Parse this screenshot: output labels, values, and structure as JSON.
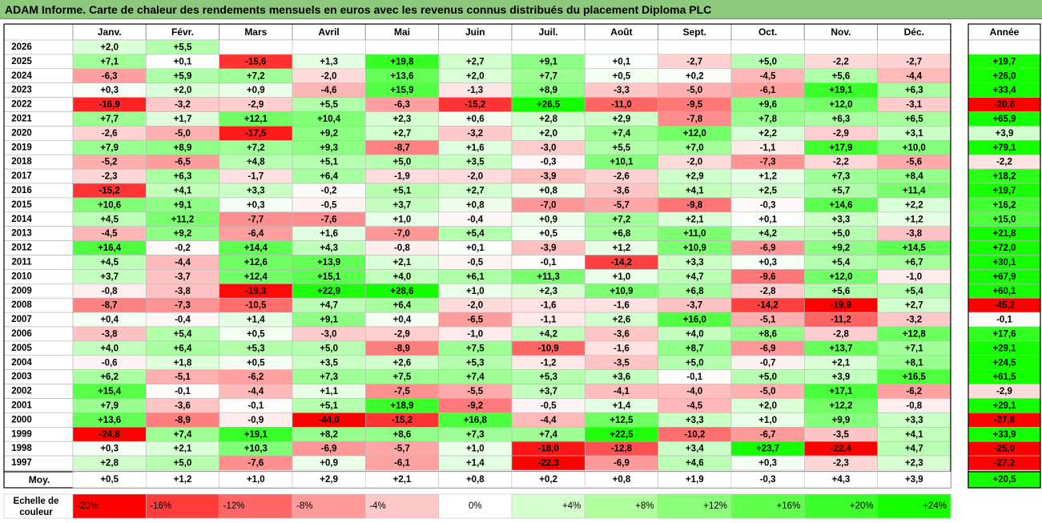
{
  "title": "ADAM Informe. Carte de chaleur des rendements mensuels en euros avec les revenus connus distribués du placement Diploma PLC",
  "chart_data": {
    "type": "heatmap",
    "months": [
      "Janv.",
      "Févr.",
      "Mars",
      "Avril",
      "Mai",
      "Juin",
      "Juil.",
      "Août",
      "Sept.",
      "Oct.",
      "Nov.",
      "Déc."
    ],
    "year_header": "Année",
    "rows": [
      {
        "year": "2026",
        "values": [
          "+2,0",
          "+5,5",
          "",
          "",
          "",
          "",
          "",
          "",
          "",
          "",
          "",
          ""
        ],
        "annual": ""
      },
      {
        "year": "2025",
        "values": [
          "+7,1",
          "+0,1",
          "-15,6",
          "+1,3",
          "+19,8",
          "+2,7",
          "+9,1",
          "+0,1",
          "-2,7",
          "+5,0",
          "-2,2",
          "-2,7"
        ],
        "annual": "+19,7"
      },
      {
        "year": "2024",
        "values": [
          "-6,3",
          "+5,9",
          "+7,2",
          "-2,0",
          "+13,6",
          "+2,0",
          "+7,7",
          "+0,5",
          "+0,2",
          "-4,5",
          "+5,6",
          "-4,4"
        ],
        "annual": "+26,0"
      },
      {
        "year": "2023",
        "values": [
          "+0,3",
          "+2,0",
          "+0,9",
          "-4,6",
          "+15,9",
          "-1,3",
          "+8,9",
          "-3,3",
          "-5,0",
          "-6,1",
          "+19,1",
          "+6,3"
        ],
        "annual": "+33,4"
      },
      {
        "year": "2022",
        "values": [
          "-16,9",
          "-3,2",
          "-2,9",
          "+5,5",
          "-6,3",
          "-15,2",
          "+26,5",
          "-11,0",
          "-9,5",
          "+9,6",
          "+12,0",
          "-3,1"
        ],
        "annual": "-20,6"
      },
      {
        "year": "2021",
        "values": [
          "+7,7",
          "+1,7",
          "+12,1",
          "+10,4",
          "+2,3",
          "+0,6",
          "+2,8",
          "+2,9",
          "-7,8",
          "+7,8",
          "+6,3",
          "+6,5"
        ],
        "annual": "+65,9"
      },
      {
        "year": "2020",
        "values": [
          "-2,6",
          "-5,0",
          "-17,5",
          "+9,2",
          "+2,7",
          "-3,2",
          "+2,0",
          "+7,4",
          "+12,0",
          "+2,2",
          "-2,9",
          "+3,1"
        ],
        "annual": "+3,9"
      },
      {
        "year": "2019",
        "values": [
          "+7,9",
          "+8,9",
          "+7,2",
          "+9,3",
          "-8,7",
          "+1,6",
          "-3,0",
          "+5,5",
          "+7,0",
          "-1,1",
          "+17,9",
          "+10,0"
        ],
        "annual": "+79,1"
      },
      {
        "year": "2018",
        "values": [
          "-5,2",
          "-6,5",
          "+4,8",
          "+5,1",
          "+5,0",
          "+3,5",
          "-0,3",
          "+10,1",
          "-2,0",
          "-7,3",
          "-2,2",
          "-5,6"
        ],
        "annual": "-2,2"
      },
      {
        "year": "2017",
        "values": [
          "-2,3",
          "+6,3",
          "-1,7",
          "+6,4",
          "-1,9",
          "-2,0",
          "-3,9",
          "-2,6",
          "+2,9",
          "+1,2",
          "+7,3",
          "+8,4"
        ],
        "annual": "+18,2"
      },
      {
        "year": "2016",
        "values": [
          "-15,2",
          "+4,1",
          "+3,3",
          "-0,2",
          "+5,1",
          "+2,7",
          "+0,8",
          "-3,6",
          "+4,1",
          "+2,5",
          "+5,7",
          "+11,4"
        ],
        "annual": "+19,7"
      },
      {
        "year": "2015",
        "values": [
          "+10,6",
          "+9,1",
          "+0,3",
          "-0,5",
          "+3,7",
          "+0,8",
          "-7,0",
          "-5,7",
          "-9,8",
          "-0,3",
          "+14,6",
          "+2,2"
        ],
        "annual": "+16,2"
      },
      {
        "year": "2014",
        "values": [
          "+4,5",
          "+11,2",
          "-7,7",
          "-7,6",
          "+1,0",
          "-0,4",
          "+0,9",
          "+7,2",
          "+2,1",
          "+0,1",
          "+3,3",
          "+1,2"
        ],
        "annual": "+15,0"
      },
      {
        "year": "2013",
        "values": [
          "-4,5",
          "+9,2",
          "-6,4",
          "+1,6",
          "-7,0",
          "+5,4",
          "+0,5",
          "+6,8",
          "+11,0",
          "+4,2",
          "+5,0",
          "-3,8"
        ],
        "annual": "+21,8"
      },
      {
        "year": "2012",
        "values": [
          "+16,4",
          "-0,2",
          "+14,4",
          "+4,3",
          "-0,8",
          "+0,1",
          "-3,9",
          "+1,2",
          "+10,9",
          "-6,9",
          "+9,2",
          "+14,5"
        ],
        "annual": "+72,0"
      },
      {
        "year": "2011",
        "values": [
          "+4,5",
          "-4,4",
          "+12,6",
          "+13,9",
          "+2,1",
          "-0,5",
          "-0,1",
          "-14,2",
          "+3,3",
          "+0,3",
          "+5,4",
          "+6,7"
        ],
        "annual": "+30,1"
      },
      {
        "year": "2010",
        "values": [
          "+3,7",
          "-3,7",
          "+12,4",
          "+15,1",
          "+4,0",
          "+6,1",
          "+11,3",
          "+1,0",
          "+4,7",
          "-9,6",
          "+12,0",
          "-1,0"
        ],
        "annual": "+67,9"
      },
      {
        "year": "2009",
        "values": [
          "-0,8",
          "-3,8",
          "-19,3",
          "+22,9",
          "+28,6",
          "+1,0",
          "+2,3",
          "+10,9",
          "+6,8",
          "-2,8",
          "+5,6",
          "+5,4"
        ],
        "annual": "+60,1"
      },
      {
        "year": "2008",
        "values": [
          "-8,7",
          "-7,3",
          "-10,5",
          "+4,7",
          "+6,4",
          "-2,0",
          "-1,6",
          "-1,6",
          "-3,7",
          "-14,2",
          "-19,9",
          "+2,7"
        ],
        "annual": "-45,2"
      },
      {
        "year": "2007",
        "values": [
          "+0,4",
          "-0,4",
          "+1,4",
          "+9,1",
          "+0,4",
          "-6,5",
          "-1,1",
          "+2,6",
          "+16,0",
          "-5,1",
          "-11,2",
          "-3,2"
        ],
        "annual": "-0,1"
      },
      {
        "year": "2006",
        "values": [
          "-3,8",
          "+5,4",
          "+0,5",
          "-3,0",
          "-2,9",
          "-1,0",
          "+4,2",
          "-3,6",
          "+4,0",
          "+8,6",
          "-2,8",
          "+12,8"
        ],
        "annual": "+17,6"
      },
      {
        "year": "2005",
        "values": [
          "+4,0",
          "+6,4",
          "+5,3",
          "+5,0",
          "-8,9",
          "+7,5",
          "-10,9",
          "-1,6",
          "+8,7",
          "-6,9",
          "+13,7",
          "+7,1"
        ],
        "annual": "+29,1"
      },
      {
        "year": "2004",
        "values": [
          "-0,6",
          "+1,8",
          "+0,5",
          "+3,5",
          "+2,6",
          "+5,3",
          "-1,2",
          "-3,5",
          "+5,0",
          "-0,7",
          "+2,1",
          "+8,1"
        ],
        "annual": "+24,5"
      },
      {
        "year": "2003",
        "values": [
          "+6,2",
          "-5,1",
          "-6,2",
          "+7,3",
          "+7,5",
          "+7,4",
          "+5,3",
          "+3,6",
          "-0,1",
          "+5,0",
          "+3,9",
          "+16,5"
        ],
        "annual": "+61,5"
      },
      {
        "year": "2002",
        "values": [
          "+15,4",
          "-0,1",
          "-4,4",
          "+1,1",
          "-7,5",
          "-5,5",
          "+3,7",
          "-4,1",
          "-4,0",
          "-5,0",
          "+17,1",
          "-6,2"
        ],
        "annual": "-2,9"
      },
      {
        "year": "2001",
        "values": [
          "+7,9",
          "-3,6",
          "-0,1",
          "+5,1",
          "+18,9",
          "-9,2",
          "-0,5",
          "+1,4",
          "-4,5",
          "+2,0",
          "+12,2",
          "-0,8"
        ],
        "annual": "+29,1"
      },
      {
        "year": "2000",
        "values": [
          "+13,6",
          "-8,9",
          "-0,9",
          "-44,0",
          "-15,2",
          "+16,8",
          "-4,4",
          "+12,5",
          "+3,3",
          "+1,0",
          "+9,9",
          "+3,3"
        ],
        "annual": "-27,8"
      },
      {
        "year": "1999",
        "values": [
          "-24,8",
          "+7,4",
          "+19,1",
          "+8,2",
          "+8,6",
          "+7,3",
          "+7,4",
          "+22,5",
          "-10,2",
          "-6,7",
          "-3,5",
          "+4,1"
        ],
        "annual": "+33,9"
      },
      {
        "year": "1998",
        "values": [
          "+0,3",
          "+2,1",
          "+10,3",
          "-6,9",
          "-5,7",
          "+1,0",
          "-18,0",
          "-12,8",
          "+3,4",
          "+23,7",
          "-22,4",
          "+4,7"
        ],
        "annual": "-25,0"
      },
      {
        "year": "1997",
        "values": [
          "+2,8",
          "+5,0",
          "-7,6",
          "+0,9",
          "-6,1",
          "+1,4",
          "-22,3",
          "-6,9",
          "+4,6",
          "+0,3",
          "-2,3",
          "+2,3"
        ],
        "annual": "-27,2"
      }
    ],
    "average": {
      "label": "Moy.",
      "values": [
        "+0,5",
        "+1,2",
        "+1,0",
        "+2,9",
        "+2,1",
        "+0,8",
        "+0,2",
        "+0,8",
        "+1,9",
        "-0,3",
        "+4,3",
        "+3,9"
      ],
      "annual": "+20,5"
    },
    "scale": {
      "label_lines": [
        "Echelle de",
        "couleur"
      ],
      "steps": [
        {
          "label": "-20%",
          "color": "#ff0000"
        },
        {
          "label": "-16%",
          "color": "#ff3c3c"
        },
        {
          "label": "-12%",
          "color": "#ff6666"
        },
        {
          "label": "-8%",
          "color": "#ff9a9a"
        },
        {
          "label": "-4%",
          "color": "#ffc8c8"
        },
        {
          "label": "0%",
          "color": "#ffffff"
        },
        {
          "label": "+4%",
          "color": "#d6ffd0"
        },
        {
          "label": "+8%",
          "color": "#b2ff9f"
        },
        {
          "label": "+12%",
          "color": "#8cff7a"
        },
        {
          "label": "+16%",
          "color": "#5fff4c"
        },
        {
          "label": "+20%",
          "color": "#3cff2a"
        },
        {
          "label": "+24%",
          "color": "#14ff00"
        }
      ]
    }
  }
}
